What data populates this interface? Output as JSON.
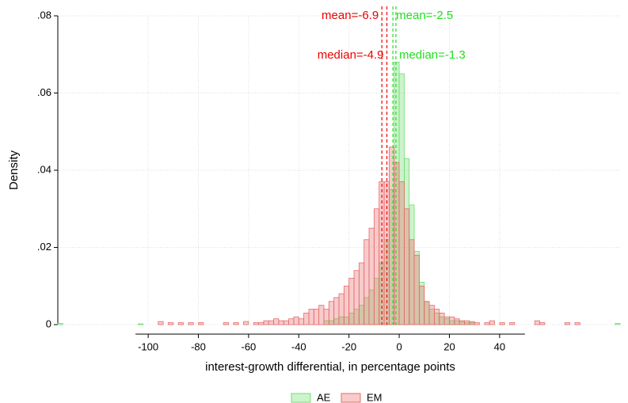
{
  "chart_data": {
    "type": "histogram",
    "x_label": "interest-growth differential, in percentage points",
    "y_label": "Density",
    "bins": [
      -136,
      -134,
      -132,
      -130,
      -128,
      -126,
      -124,
      -122,
      -120,
      -118,
      -116,
      -114,
      -112,
      -110,
      -108,
      -106,
      -104,
      -102,
      -100,
      -98,
      -96,
      -94,
      -92,
      -90,
      -88,
      -86,
      -84,
      -82,
      -80,
      -78,
      -76,
      -74,
      -72,
      -70,
      -68,
      -66,
      -64,
      -62,
      -60,
      -58,
      -56,
      -54,
      -52,
      -50,
      -48,
      -46,
      -44,
      -42,
      -40,
      -38,
      -36,
      -34,
      -32,
      -30,
      -28,
      -26,
      -24,
      -22,
      -20,
      -18,
      -16,
      -14,
      -12,
      -10,
      -8,
      -6,
      -4,
      -2,
      0,
      2,
      4,
      6,
      8,
      10,
      12,
      14,
      16,
      18,
      20,
      22,
      24,
      26,
      28,
      30,
      32,
      34,
      36,
      38,
      40,
      42,
      44,
      46,
      48,
      50,
      52,
      54,
      56,
      58,
      60,
      62,
      64,
      66,
      68,
      70,
      72,
      74,
      76,
      78,
      80,
      82,
      84,
      86,
      88
    ],
    "series": [
      {
        "name": "AE",
        "color": "#6fdc6f",
        "values": [
          0.0003,
          0,
          0,
          0,
          0,
          0,
          0,
          0,
          0,
          0,
          0,
          0,
          0,
          0,
          0,
          0,
          0.0002,
          0,
          0,
          0,
          0,
          0,
          0,
          0,
          0,
          0,
          0,
          0,
          0,
          0,
          0,
          0,
          0,
          0,
          0,
          0,
          0,
          0,
          0,
          0,
          0,
          0,
          0,
          0,
          0,
          0,
          0,
          0,
          0,
          0,
          0,
          0,
          0,
          0.001,
          0.001,
          0.0015,
          0.002,
          0.002,
          0.003,
          0.004,
          0.005,
          0.007,
          0.009,
          0.012,
          0.016,
          0.022,
          0.035,
          0.068,
          0.065,
          0.043,
          0.031,
          0.019,
          0.011,
          0.006,
          0.004,
          0.003,
          0.002,
          0.0015,
          0.001,
          0.001,
          0.0008,
          0.0005,
          0.0005,
          0,
          0,
          0,
          0,
          0,
          0,
          0,
          0,
          0,
          0,
          0,
          0,
          0,
          0,
          0,
          0,
          0,
          0,
          0,
          0,
          0,
          0,
          0,
          0,
          0,
          0,
          0,
          0,
          0.0003
        ]
      },
      {
        "name": "EM",
        "color": "#e86a6a",
        "values": [
          0,
          0,
          0,
          0,
          0,
          0,
          0,
          0,
          0,
          0,
          0,
          0,
          0,
          0,
          0,
          0,
          0,
          0,
          0,
          0,
          0.0008,
          0,
          0.0005,
          0,
          0.0005,
          0,
          0.0005,
          0,
          0.0005,
          0,
          0,
          0,
          0,
          0.0005,
          0,
          0.0005,
          0,
          0.0008,
          0,
          0.0005,
          0.0005,
          0.001,
          0.001,
          0.0015,
          0.001,
          0.001,
          0.0015,
          0.002,
          0.0015,
          0.003,
          0.004,
          0.004,
          0.005,
          0.004,
          0.006,
          0.007,
          0.008,
          0.01,
          0.012,
          0.014,
          0.016,
          0.022,
          0.025,
          0.03,
          0.037,
          0.037,
          0.046,
          0.042,
          0.037,
          0.03,
          0.022,
          0.018,
          0.01,
          0.006,
          0.005,
          0.004,
          0.003,
          0.002,
          0.002,
          0.0015,
          0.001,
          0.001,
          0.0008,
          0.0005,
          0,
          0.0005,
          0.001,
          0,
          0.0005,
          0,
          0.0005,
          0,
          0,
          0,
          0,
          0.001,
          0.0005,
          0,
          0,
          0,
          0,
          0.0005,
          0,
          0.0005,
          0,
          0,
          0,
          0,
          0,
          0,
          0,
          0
        ]
      }
    ],
    "reference_lines": [
      {
        "value": -6.9,
        "label": "mean=-6.9",
        "color": "#ee0000",
        "side": "left",
        "row": 0
      },
      {
        "value": -4.9,
        "label": "median=-4.9",
        "color": "#ee0000",
        "side": "left",
        "row": 1
      },
      {
        "value": -2.5,
        "label": "mean=-2.5",
        "color": "#22dd22",
        "side": "right",
        "row": 0
      },
      {
        "value": -1.3,
        "label": "median=-1.3",
        "color": "#22dd22",
        "side": "right",
        "row": 1
      }
    ],
    "xlim": [
      -136,
      88
    ],
    "ylim": [
      0,
      0.08
    ],
    "xticks": [
      -100,
      -80,
      -60,
      -40,
      -20,
      0,
      20,
      40
    ],
    "yticks": [
      0,
      {
        "value": 0.02,
        "label": ".02"
      },
      {
        "value": 0.04,
        "label": ".04"
      },
      {
        "value": 0.06,
        "label": ".06"
      },
      {
        "value": 0.08,
        "label": ".08"
      }
    ],
    "grid": true,
    "legend": "bottom"
  }
}
